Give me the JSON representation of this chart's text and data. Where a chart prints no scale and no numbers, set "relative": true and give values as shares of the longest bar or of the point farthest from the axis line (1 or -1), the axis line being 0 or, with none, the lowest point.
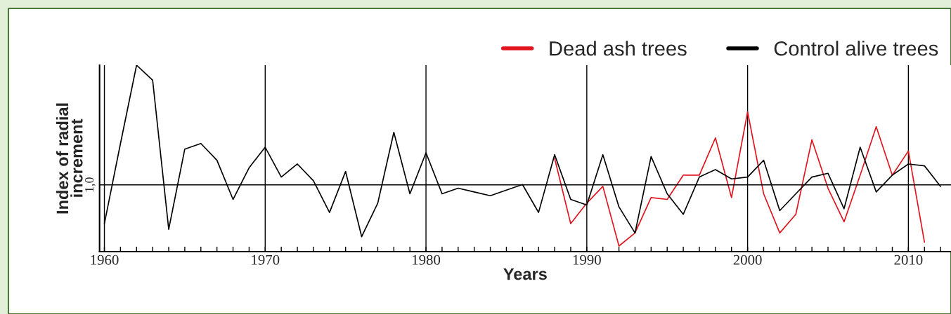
{
  "chart_data": {
    "type": "line",
    "relative": true,
    "xlabel": "Years",
    "ylabel": "Index of radial\nincrement",
    "x": [
      1960,
      1961,
      1962,
      1963,
      1964,
      1965,
      1966,
      1967,
      1968,
      1969,
      1970,
      1971,
      1972,
      1973,
      1974,
      1975,
      1976,
      1977,
      1978,
      1979,
      1980,
      1981,
      1982,
      1983,
      1984,
      1985,
      1986,
      1987,
      1988,
      1989,
      1990,
      1991,
      1992,
      1993,
      1994,
      1995,
      1996,
      1997,
      1998,
      1999,
      2000,
      2001,
      2002,
      2003,
      2004,
      2005,
      2006,
      2007,
      2008,
      2009,
      2010,
      2011,
      2012
    ],
    "series": [
      {
        "name": "Dead ash trees",
        "color": "#e0141e",
        "values": [
          null,
          null,
          null,
          null,
          null,
          null,
          null,
          null,
          null,
          null,
          null,
          null,
          null,
          null,
          null,
          null,
          null,
          null,
          null,
          null,
          null,
          null,
          null,
          null,
          null,
          null,
          null,
          null,
          0.5,
          0.15,
          0.26,
          0.35,
          0.03,
          0.1,
          0.29,
          0.28,
          0.41,
          0.41,
          0.61,
          0.29,
          0.75,
          0.31,
          0.1,
          0.2,
          0.6,
          0.34,
          0.16,
          0.41,
          0.67,
          0.41,
          0.54,
          0.05,
          null
        ]
      },
      {
        "name": "Control alive trees",
        "color": "#000000",
        "values": [
          0.15,
          0.58,
          1.0,
          0.92,
          0.12,
          0.55,
          0.58,
          0.49,
          0.28,
          0.45,
          0.56,
          0.4,
          0.47,
          0.38,
          0.21,
          0.43,
          0.08,
          0.26,
          0.64,
          0.31,
          0.53,
          0.31,
          0.34,
          0.32,
          0.3,
          0.33,
          0.36,
          0.21,
          0.52,
          0.28,
          0.25,
          0.52,
          0.24,
          0.1,
          0.51,
          0.31,
          0.2,
          0.4,
          0.44,
          0.39,
          0.4,
          0.49,
          0.22,
          0.31,
          0.4,
          0.42,
          0.23,
          0.56,
          0.32,
          0.41,
          0.47,
          0.46,
          0.35
        ]
      }
    ],
    "xlim": [
      1959.7,
      2012.65
    ],
    "xticks": [
      1960,
      {
        "value": 1961,
        "label": null
      },
      {
        "value": 1962,
        "label": null
      },
      {
        "value": 1963,
        "label": null
      },
      {
        "value": 1964,
        "label": null
      },
      {
        "value": 1965,
        "label": null
      },
      {
        "value": 1966,
        "label": null
      },
      {
        "value": 1967,
        "label": null
      },
      {
        "value": 1968,
        "label": null
      },
      {
        "value": 1969,
        "label": null
      },
      1970,
      {
        "value": 1971,
        "label": null
      },
      {
        "value": 1972,
        "label": null
      },
      {
        "value": 1973,
        "label": null
      },
      {
        "value": 1974,
        "label": null
      },
      {
        "value": 1975,
        "label": null
      },
      {
        "value": 1976,
        "label": null
      },
      {
        "value": 1977,
        "label": null
      },
      {
        "value": 1978,
        "label": null
      },
      {
        "value": 1979,
        "label": null
      },
      1980,
      {
        "value": 1981,
        "label": null
      },
      {
        "value": 1982,
        "label": null
      },
      {
        "value": 1983,
        "label": null
      },
      {
        "value": 1984,
        "label": null
      },
      {
        "value": 1985,
        "label": null
      },
      {
        "value": 1986,
        "label": null
      },
      {
        "value": 1987,
        "label": null
      },
      {
        "value": 1988,
        "label": null
      },
      {
        "value": 1989,
        "label": null
      },
      1990,
      {
        "value": 1991,
        "label": null
      },
      {
        "value": 1992,
        "label": null
      },
      {
        "value": 1993,
        "label": null
      },
      {
        "value": 1994,
        "label": null
      },
      {
        "value": 1995,
        "label": null
      },
      {
        "value": 1996,
        "label": null
      },
      {
        "value": 1997,
        "label": null
      },
      {
        "value": 1998,
        "label": null
      },
      {
        "value": 1999,
        "label": null
      },
      2000,
      {
        "value": 2001,
        "label": null
      },
      {
        "value": 2002,
        "label": null
      },
      {
        "value": 2003,
        "label": null
      },
      {
        "value": 2004,
        "label": null
      },
      {
        "value": 2005,
        "label": null
      },
      {
        "value": 2006,
        "label": null
      },
      {
        "value": 2007,
        "label": null
      },
      {
        "value": 2008,
        "label": null
      },
      {
        "value": 2009,
        "label": null
      },
      2010,
      {
        "value": 2011,
        "label": null
      },
      {
        "value": 2012,
        "label": null
      }
    ],
    "ref_lines": [
      {
        "axis": "y",
        "value": 0.358,
        "color": "#000000"
      }
    ],
    "annotations": [
      "1,0"
    ],
    "grid": "x",
    "legend": "top right",
    "marker": "none",
    "line_style": "solid"
  }
}
